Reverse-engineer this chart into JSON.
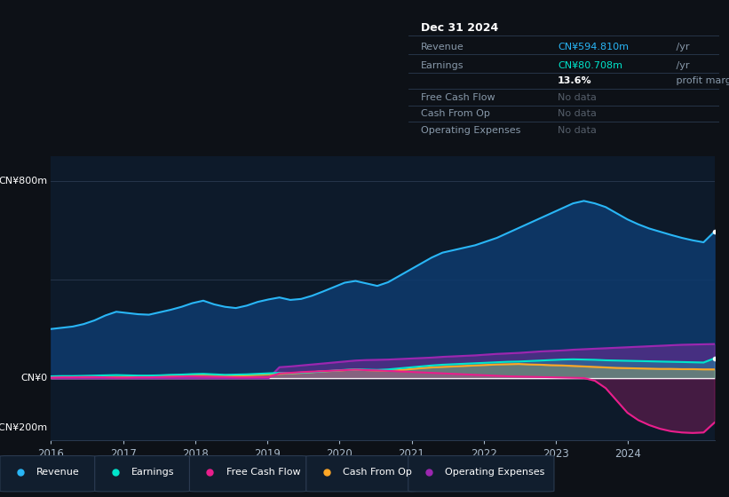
{
  "bg_color": "#0d1117",
  "chart_bg": "#0d1a2a",
  "y_label_top": "CN¥800m",
  "y_label_zero": "CN¥0",
  "y_label_bottom": "-CN¥200m",
  "x_ticks": [
    2016,
    2017,
    2018,
    2019,
    2020,
    2021,
    2022,
    2023,
    2024
  ],
  "ylim": [
    -250,
    900
  ],
  "revenue_color": "#29b6f6",
  "revenue_fill": "#0d3a6e",
  "earnings_color": "#00e5cc",
  "fcf_color": "#e91e8c",
  "cashfromop_color": "#ffa726",
  "opex_color": "#9c27b0",
  "legend": [
    {
      "label": "Revenue",
      "color": "#29b6f6"
    },
    {
      "label": "Earnings",
      "color": "#00e5cc"
    },
    {
      "label": "Free Cash Flow",
      "color": "#e91e8c"
    },
    {
      "label": "Cash From Op",
      "color": "#ffa726"
    },
    {
      "label": "Operating Expenses",
      "color": "#9c27b0"
    }
  ],
  "infobox": {
    "date": "Dec 31 2024",
    "revenue_val": "CN¥594.810m",
    "revenue_suffix": " /yr",
    "earnings_val": "CN¥80.708m",
    "earnings_suffix": " /yr",
    "margin": "13.6%",
    "margin_suffix": " profit margin"
  },
  "revenue": [
    200,
    205,
    210,
    220,
    235,
    255,
    270,
    265,
    260,
    258,
    268,
    278,
    290,
    305,
    315,
    300,
    290,
    285,
    295,
    310,
    320,
    328,
    318,
    322,
    335,
    352,
    370,
    388,
    395,
    385,
    375,
    390,
    415,
    440,
    465,
    490,
    510,
    520,
    530,
    540,
    555,
    570,
    590,
    610,
    630,
    650,
    670,
    690,
    710,
    720,
    710,
    695,
    670,
    645,
    625,
    608,
    595,
    582,
    570,
    560,
    552,
    595
  ],
  "earnings": [
    8,
    9,
    9,
    10,
    11,
    12,
    13,
    12,
    11,
    11,
    12,
    14,
    15,
    17,
    18,
    16,
    14,
    15,
    16,
    18,
    20,
    22,
    21,
    23,
    25,
    28,
    31,
    34,
    36,
    35,
    34,
    36,
    40,
    44,
    48,
    52,
    55,
    57,
    59,
    61,
    63,
    65,
    67,
    68,
    70,
    72,
    74,
    76,
    77,
    76,
    75,
    73,
    72,
    71,
    70,
    69,
    68,
    67,
    66,
    65,
    64,
    81
  ],
  "fcf": [
    3,
    4,
    4,
    5,
    5,
    4,
    3,
    3,
    4,
    4,
    5,
    6,
    7,
    8,
    7,
    6,
    5,
    4,
    4,
    5,
    5,
    20,
    22,
    25,
    27,
    29,
    31,
    33,
    35,
    33,
    32,
    30,
    28,
    26,
    24,
    22,
    20,
    18,
    16,
    14,
    12,
    10,
    8,
    7,
    6,
    5,
    4,
    3,
    2,
    1,
    -10,
    -40,
    -90,
    -140,
    -170,
    -190,
    -205,
    -215,
    -220,
    -222,
    -220,
    -180
  ],
  "cashfromop": [
    4,
    5,
    5,
    6,
    7,
    6,
    5,
    5,
    6,
    7,
    8,
    10,
    11,
    13,
    15,
    13,
    12,
    11,
    12,
    14,
    16,
    18,
    20,
    22,
    25,
    28,
    30,
    33,
    35,
    33,
    32,
    31,
    33,
    37,
    41,
    44,
    46,
    48,
    50,
    52,
    54,
    56,
    57,
    58,
    56,
    55,
    53,
    52,
    50,
    48,
    46,
    44,
    42,
    41,
    40,
    39,
    38,
    38,
    37,
    37,
    36,
    36
  ],
  "opex": [
    0,
    0,
    0,
    0,
    0,
    0,
    0,
    0,
    0,
    0,
    0,
    0,
    0,
    0,
    0,
    0,
    0,
    0,
    0,
    0,
    0,
    45,
    48,
    52,
    56,
    60,
    64,
    68,
    72,
    74,
    75,
    76,
    78,
    80,
    82,
    84,
    87,
    89,
    91,
    93,
    96,
    99,
    101,
    103,
    106,
    109,
    111,
    113,
    116,
    118,
    120,
    122,
    124,
    126,
    128,
    130,
    132,
    134,
    136,
    137,
    138,
    139
  ]
}
